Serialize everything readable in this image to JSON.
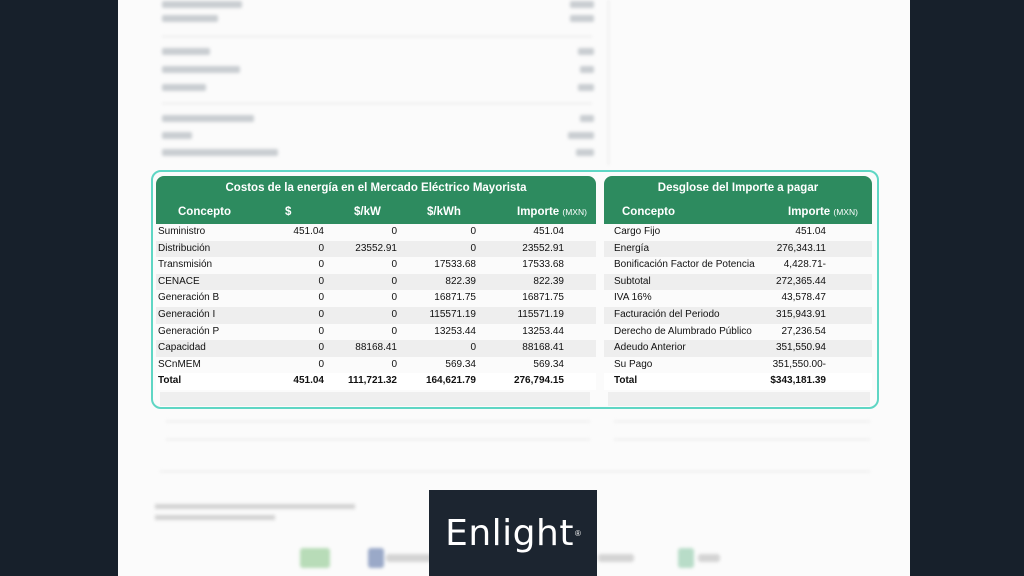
{
  "left_table": {
    "title": "Costos de la energía en el Mercado Eléctrico Mayorista",
    "headers": [
      "Concepto",
      "$",
      "$/kW",
      "$/kWh",
      "Importe"
    ],
    "importe_unit": "(MXN)",
    "rows": [
      [
        "Suministro",
        "451.04",
        "0",
        "0",
        "451.04"
      ],
      [
        "Distribución",
        "0",
        "23552.91",
        "0",
        "23552.91"
      ],
      [
        "Transmisión",
        "0",
        "0",
        "17533.68",
        "17533.68"
      ],
      [
        "CENACE",
        "0",
        "0",
        "822.39",
        "822.39"
      ],
      [
        "Generación B",
        "0",
        "0",
        "16871.75",
        "16871.75"
      ],
      [
        "Generación I",
        "0",
        "0",
        "115571.19",
        "115571.19"
      ],
      [
        "Generación P",
        "0",
        "0",
        "13253.44",
        "13253.44"
      ],
      [
        "Capacidad",
        "0",
        "88168.41",
        "0",
        "88168.41"
      ],
      [
        "SCnMEM",
        "0",
        "0",
        "569.34",
        "569.34"
      ]
    ],
    "total": [
      "Total",
      "451.04",
      "111,721.32",
      "164,621.79",
      "276,794.15"
    ]
  },
  "right_table": {
    "title": "Desglose del Importe a pagar",
    "headers": [
      "Concepto",
      "Importe"
    ],
    "importe_unit": "(MXN)",
    "rows": [
      [
        "Cargo Fijo",
        "451.04"
      ],
      [
        "Energía",
        "276,343.11"
      ],
      [
        "Bonificación Factor de Potencia",
        "4,428.71-"
      ],
      [
        "Subtotal",
        "272,365.44"
      ],
      [
        "IVA 16%",
        "43,578.47"
      ],
      [
        "Facturación del Periodo",
        "315,943.91"
      ],
      [
        "Derecho de Alumbrado Público",
        "27,236.54"
      ],
      [
        "Adeudo Anterior",
        "351,550.94"
      ],
      [
        "Su Pago",
        "351,550.00-"
      ]
    ],
    "total": [
      "Total",
      "$343,181.39"
    ]
  },
  "brand": {
    "name": "Enlight",
    "mark": "®"
  },
  "colors": {
    "header_green": "#2d8b5f",
    "highlight": "#5fd6c4",
    "background": "#17202b"
  }
}
